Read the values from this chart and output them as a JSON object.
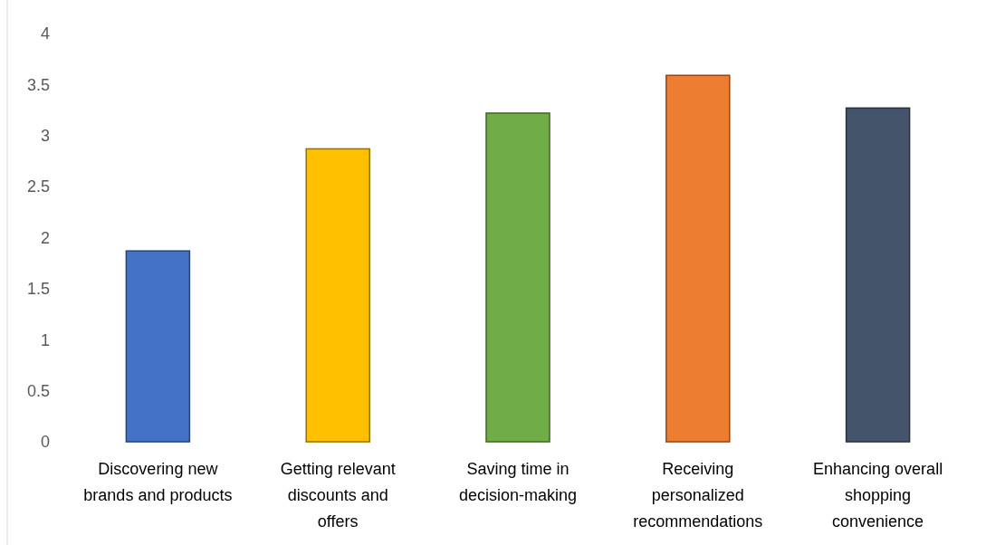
{
  "chart_data": {
    "type": "bar",
    "categories": [
      "Discovering new brands and products",
      "Getting relevant discounts and offers",
      "Saving time in decision-making",
      "Receiving personalized recommendations",
      "Enhancing overall shopping convenience"
    ],
    "values": [
      1.87,
      2.87,
      3.22,
      3.59,
      3.27
    ],
    "colors": [
      "#4472c4",
      "#ffc000",
      "#70ad47",
      "#ed7d31",
      "#44546a"
    ],
    "ylim": [
      0,
      4
    ],
    "yticks": [
      0,
      0.5,
      1,
      1.5,
      2,
      2.5,
      3,
      3.5,
      4
    ],
    "grid": false
  }
}
